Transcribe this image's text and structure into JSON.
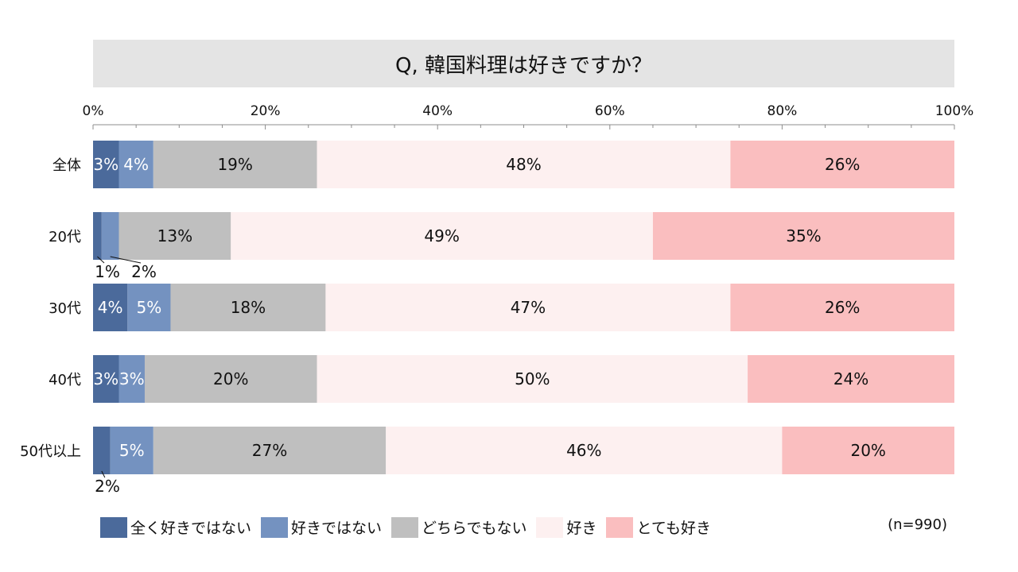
{
  "title": "Q, 韓国料理は好きですか？",
  "note": "(n=990)",
  "colors": {
    "title_bg": "#e4e4e4",
    "series": [
      "#4b6a9b",
      "#7492c0",
      "#bfbfbf",
      "#fdf0f0",
      "#fabebf"
    ]
  },
  "chart_data": {
    "type": "bar",
    "orientation": "horizontal",
    "stacked": true,
    "percent_scale": true,
    "title": "Q, 韓国料理は好きですか？",
    "categories": [
      "全体",
      "20代",
      "30代",
      "40代",
      "50代以上"
    ],
    "series": [
      {
        "name": "全く好きではない",
        "values": [
          3,
          1,
          4,
          3,
          2
        ]
      },
      {
        "name": "好きではない",
        "values": [
          4,
          2,
          5,
          3,
          5
        ]
      },
      {
        "name": "どちらでもない",
        "values": [
          19,
          13,
          18,
          20,
          27
        ]
      },
      {
        "name": "好き",
        "values": [
          48,
          49,
          47,
          50,
          46
        ]
      },
      {
        "name": "とても好き",
        "values": [
          26,
          35,
          26,
          24,
          20
        ]
      }
    ],
    "xlim": [
      0,
      100
    ],
    "xticks": [
      "0%",
      "20%",
      "40%",
      "60%",
      "80%",
      "100%"
    ],
    "grid": false,
    "legend_position": "bottom",
    "value_format": "{v}%"
  }
}
